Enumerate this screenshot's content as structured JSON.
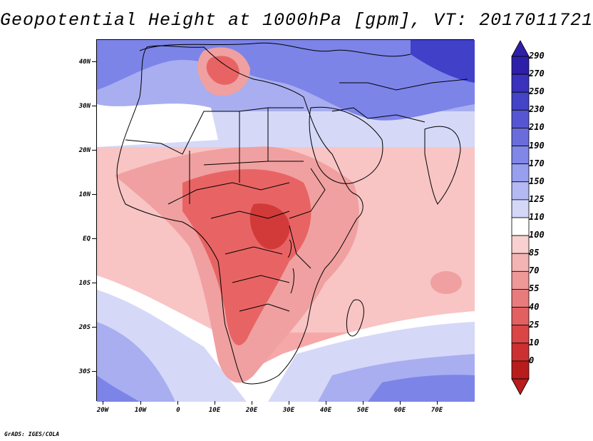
{
  "title": "Geopotential Height at 1000hPa [gpm], VT: 2017011721",
  "footer": "GrADS: IGES/COLA",
  "map": {
    "lat_labels": [
      "40N",
      "30N",
      "20N",
      "10N",
      "EQ",
      "10S",
      "20S",
      "30S"
    ],
    "lon_labels": [
      "20W",
      "10W",
      "0",
      "10E",
      "20E",
      "30E",
      "40E",
      "50E",
      "60E",
      "70E"
    ],
    "colors": {
      "deep_red": "#d23a3a",
      "red": "#e86464",
      "light_red": "#f0a0a0",
      "pale_red": "#f8c4c4",
      "white": "#ffffff",
      "pale_blue": "#d6d8f8",
      "light_blue": "#a8aef0",
      "blue": "#7c84e8",
      "deep_blue": "#4040c8"
    }
  },
  "colorbar": {
    "labels": [
      "290",
      "270",
      "250",
      "230",
      "210",
      "190",
      "170",
      "150",
      "125",
      "110",
      "100",
      "85",
      "70",
      "55",
      "40",
      "25",
      "10",
      "0"
    ],
    "colors": [
      "#2e1fa8",
      "#3a32bc",
      "#4444c8",
      "#5656d2",
      "#6a6cdc",
      "#8087e6",
      "#989fee",
      "#b4b9f4",
      "#d4d7f8",
      "#ffffff",
      "#f8d0d0",
      "#f4b4b4",
      "#ee9898",
      "#e87c7c",
      "#e26060",
      "#da4646",
      "#cc3030",
      "#b81c1c"
    ]
  }
}
